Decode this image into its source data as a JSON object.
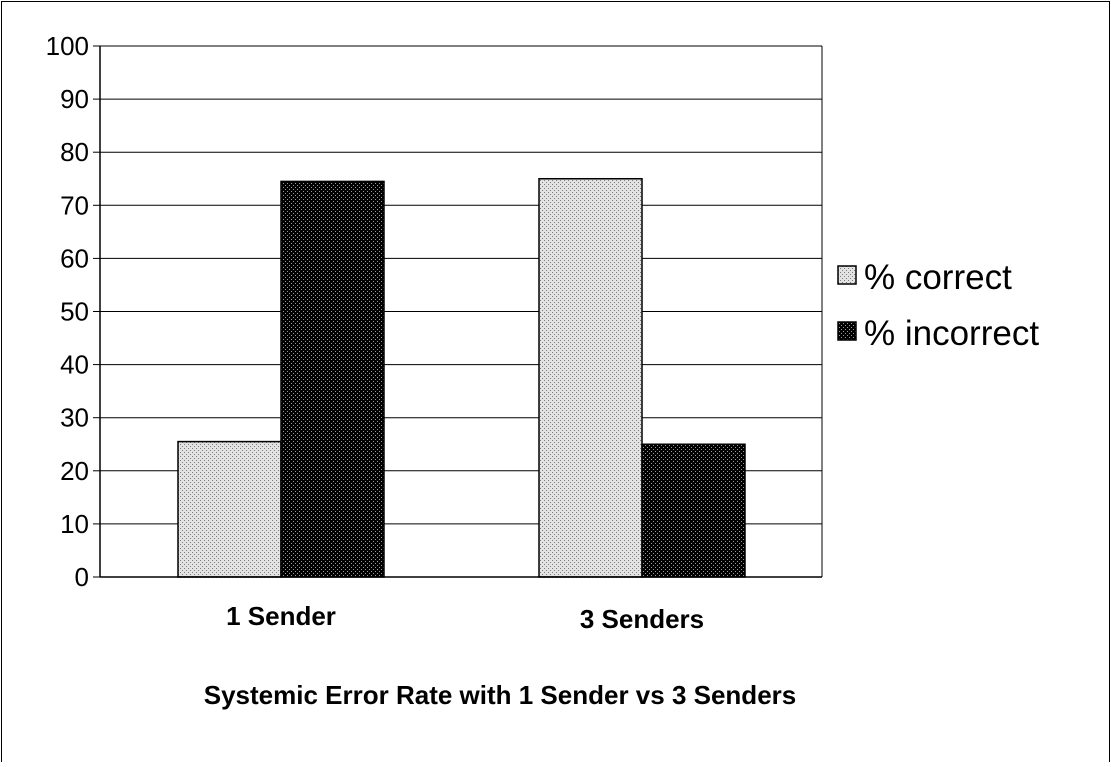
{
  "chart_data": {
    "type": "bar",
    "categories": [
      "1 Sender",
      "3 Senders"
    ],
    "series": [
      {
        "name": "% correct",
        "values": [
          25.5,
          75
        ]
      },
      {
        "name": "% incorrect",
        "values": [
          74.5,
          25
        ]
      }
    ],
    "title": "Systemic Error Rate with 1 Sender vs 3 Senders",
    "xlabel": "",
    "ylabel": "",
    "ylim": [
      0,
      100
    ],
    "yticks": [
      "0",
      "10",
      "20",
      "30",
      "40",
      "50",
      "60",
      "70",
      "80",
      "90",
      "100"
    ],
    "grid": true,
    "legend_position": "right",
    "colors": {
      "correct": "#d9d9d9",
      "incorrect": "#111111"
    }
  }
}
